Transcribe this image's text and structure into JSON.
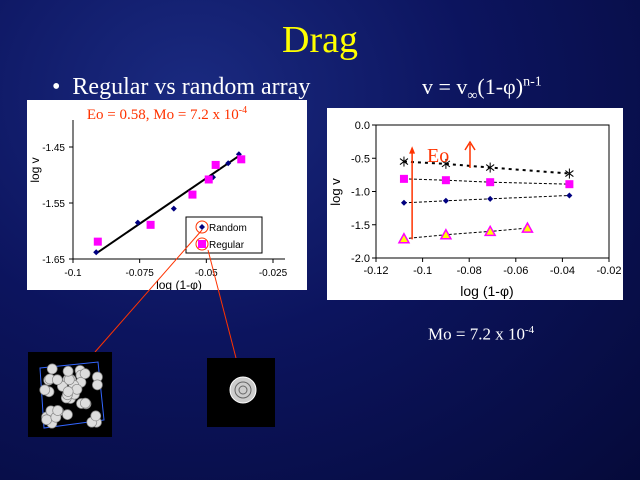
{
  "slide": {
    "title": "Drag",
    "bullet": "Regular vs random array",
    "formula": {
      "base": "v = v",
      "sub": "∞",
      "mid": "(1-φ)",
      "sup": "n-1"
    },
    "mo_label": {
      "text": "Mo = 7.2 x 10",
      "sup": "-4"
    }
  },
  "colors": {
    "title": "#ffff00",
    "annotation": "#ff3300",
    "random": "#000080",
    "regular": "#ff00ff",
    "triangle": "#ffff00"
  },
  "chart_data": [
    {
      "type": "scatter",
      "annotation": "Eo = 0.58, Mo = 7.2 x 10",
      "annotation_sup": "-4",
      "xlabel": "log (1-φ)",
      "ylabel": "log v",
      "xlim": [
        -0.1,
        -0.025
      ],
      "ylim": [
        -1.65,
        -1.4
      ],
      "xticks": [
        "-0.1",
        "-0.075",
        "-0.05",
        "-0.025"
      ],
      "yticks": [
        "-1.45",
        "-1.55",
        "-1.65"
      ],
      "legend": "bottom-right",
      "series": [
        {
          "name": "Random",
          "marker": "diamond",
          "x": [
            -0.0913,
            -0.0757,
            -0.0622,
            -0.0475,
            -0.0418,
            -0.0378
          ],
          "y": [
            -1.638,
            -1.585,
            -1.56,
            -1.504,
            -1.479,
            -1.463
          ]
        },
        {
          "name": "Regular",
          "marker": "square",
          "x": [
            -0.0907,
            -0.0709,
            -0.0552,
            -0.0491,
            -0.0465,
            -0.0369
          ],
          "y": [
            -1.619,
            -1.589,
            -1.535,
            -1.508,
            -1.482,
            -1.472
          ]
        }
      ],
      "trendline": {
        "x": [
          -0.0913,
          -0.0375
        ],
        "y": [
          -1.64,
          -1.465
        ]
      }
    },
    {
      "type": "line",
      "xlabel": "log (1-φ)",
      "ylabel": "log v",
      "xlim": [
        -0.12,
        -0.02
      ],
      "ylim": [
        -2.0,
        0.0
      ],
      "xticks": [
        "-0.12",
        "-0.1",
        "-0.08",
        "-0.06",
        "-0.04",
        "-0.02"
      ],
      "yticks": [
        "0.0",
        "-0.5",
        "-1.0",
        "-1.5",
        "-2.0"
      ],
      "annotation": "Eo",
      "series": [
        {
          "marker": "star",
          "x": [
            -0.108,
            -0.09,
            -0.071,
            -0.037
          ],
          "y": [
            -0.55,
            -0.585,
            -0.64,
            -0.73
          ]
        },
        {
          "marker": "square",
          "x": [
            -0.108,
            -0.09,
            -0.071,
            -0.037
          ],
          "y": [
            -0.81,
            -0.83,
            -0.86,
            -0.89
          ]
        },
        {
          "marker": "diamond",
          "x": [
            -0.108,
            -0.09,
            -0.071,
            -0.037
          ],
          "y": [
            -1.17,
            -1.14,
            -1.11,
            -1.06
          ]
        },
        {
          "marker": "triangle",
          "x": [
            -0.108,
            -0.09,
            -0.071,
            -0.055
          ],
          "y": [
            -1.71,
            -1.65,
            -1.6,
            -1.55
          ]
        }
      ]
    }
  ]
}
